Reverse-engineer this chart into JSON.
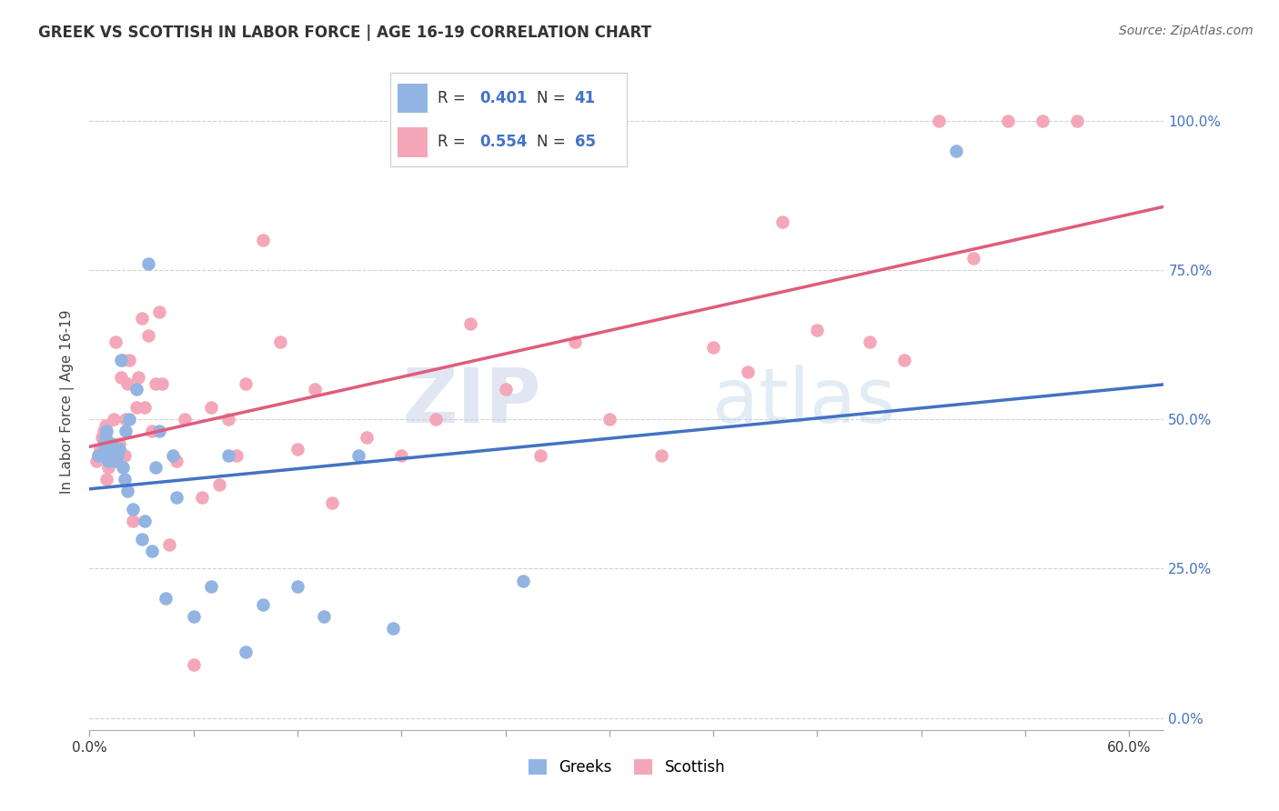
{
  "title": "GREEK VS SCOTTISH IN LABOR FORCE | AGE 16-19 CORRELATION CHART",
  "source": "Source: ZipAtlas.com",
  "ylabel": "In Labor Force | Age 16-19",
  "xlim": [
    0.0,
    0.62
  ],
  "ylim": [
    -0.02,
    1.08
  ],
  "legend_r_greek": "0.401",
  "legend_n_greek": "41",
  "legend_r_scottish": "0.554",
  "legend_n_scottish": "65",
  "greek_color": "#92b4e3",
  "scottish_color": "#f4a7b9",
  "greek_line_color": "#4472c4",
  "scottish_line_color": "#e05c7a",
  "greek_x": [
    0.005,
    0.007,
    0.008,
    0.009,
    0.01,
    0.01,
    0.011,
    0.012,
    0.013,
    0.014,
    0.015,
    0.016,
    0.017,
    0.018,
    0.019,
    0.02,
    0.021,
    0.022,
    0.023,
    0.025,
    0.027,
    0.03,
    0.032,
    0.034,
    0.036,
    0.038,
    0.04,
    0.044,
    0.048,
    0.05,
    0.06,
    0.07,
    0.08,
    0.09,
    0.1,
    0.12,
    0.135,
    0.155,
    0.175,
    0.25,
    0.5
  ],
  "greek_y": [
    0.44,
    0.44,
    0.46,
    0.47,
    0.48,
    0.46,
    0.43,
    0.44,
    0.46,
    0.45,
    0.43,
    0.44,
    0.45,
    0.6,
    0.42,
    0.4,
    0.48,
    0.38,
    0.5,
    0.35,
    0.55,
    0.3,
    0.33,
    0.76,
    0.28,
    0.42,
    0.48,
    0.2,
    0.44,
    0.37,
    0.17,
    0.22,
    0.44,
    0.11,
    0.19,
    0.22,
    0.17,
    0.44,
    0.15,
    0.23,
    0.95
  ],
  "scottish_x": [
    0.004,
    0.005,
    0.006,
    0.007,
    0.008,
    0.009,
    0.01,
    0.011,
    0.012,
    0.013,
    0.014,
    0.015,
    0.016,
    0.017,
    0.018,
    0.019,
    0.02,
    0.021,
    0.022,
    0.023,
    0.025,
    0.027,
    0.028,
    0.03,
    0.032,
    0.034,
    0.036,
    0.038,
    0.04,
    0.042,
    0.046,
    0.05,
    0.055,
    0.06,
    0.065,
    0.07,
    0.075,
    0.08,
    0.085,
    0.09,
    0.1,
    0.11,
    0.12,
    0.13,
    0.14,
    0.16,
    0.18,
    0.2,
    0.22,
    0.24,
    0.26,
    0.28,
    0.3,
    0.33,
    0.36,
    0.38,
    0.4,
    0.42,
    0.45,
    0.47,
    0.49,
    0.51,
    0.53,
    0.55,
    0.57
  ],
  "scottish_y": [
    0.43,
    0.44,
    0.45,
    0.47,
    0.48,
    0.49,
    0.4,
    0.42,
    0.44,
    0.45,
    0.5,
    0.63,
    0.43,
    0.46,
    0.57,
    0.6,
    0.44,
    0.5,
    0.56,
    0.6,
    0.33,
    0.52,
    0.57,
    0.67,
    0.52,
    0.64,
    0.48,
    0.56,
    0.68,
    0.56,
    0.29,
    0.43,
    0.5,
    0.09,
    0.37,
    0.52,
    0.39,
    0.5,
    0.44,
    0.56,
    0.8,
    0.63,
    0.45,
    0.55,
    0.36,
    0.47,
    0.44,
    0.5,
    0.66,
    0.55,
    0.44,
    0.63,
    0.5,
    0.44,
    0.62,
    0.58,
    0.83,
    0.65,
    0.63,
    0.6,
    1.0,
    0.77,
    1.0,
    1.0,
    1.0
  ],
  "yticks": [
    0.0,
    0.25,
    0.5,
    0.75,
    1.0
  ],
  "ytick_labels": [
    "0.0%",
    "25.0%",
    "50.0%",
    "75.0%",
    "100.0%"
  ]
}
